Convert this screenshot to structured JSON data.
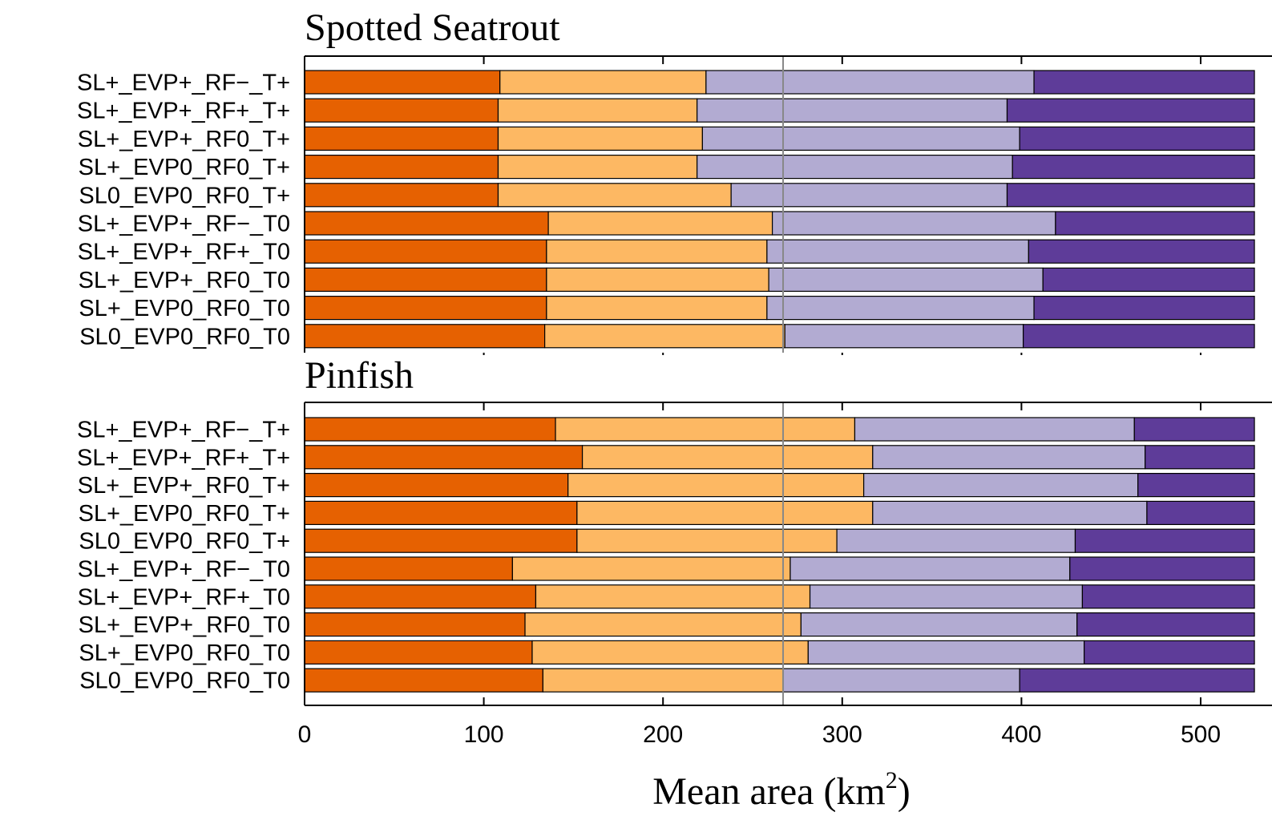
{
  "chart_data": {
    "type": "bar",
    "orientation": "horizontal",
    "stacked": true,
    "xlabel": "Mean area (km",
    "xlabel_superscript": "2",
    "xlabel_suffix": ")",
    "xlim": [
      0,
      530
    ],
    "xticks": [
      0,
      100,
      200,
      300,
      400,
      500
    ],
    "tick_labels": [
      "0",
      "100",
      "200",
      "300",
      "400",
      "500"
    ],
    "segment_colors": [
      "#e66101",
      "#fdb863",
      "#b2abd2",
      "#5e3c99"
    ],
    "reference_line": 267,
    "reference_line_color": "#888888",
    "categories": [
      "SL+_EVP+_RF−_T+",
      "SL+_EVP+_RF+_T+",
      "SL+_EVP+_RF0_T+",
      "SL+_EVP0_RF0_T+",
      "SL0_EVP0_RF0_T+",
      "SL+_EVP+_RF−_T0",
      "SL+_EVP+_RF+_T0",
      "SL+_EVP+_RF0_T0",
      "SL+_EVP0_RF0_T0",
      "SL0_EVP0_RF0_T0"
    ],
    "panels": [
      {
        "title": "Spotted Seatrout",
        "segments": [
          [
            109,
            224,
            407,
            530
          ],
          [
            108,
            219,
            392,
            530
          ],
          [
            108,
            222,
            399,
            530
          ],
          [
            108,
            219,
            395,
            530
          ],
          [
            108,
            238,
            392,
            530
          ],
          [
            136,
            261,
            419,
            530
          ],
          [
            135,
            258,
            404,
            530
          ],
          [
            135,
            259,
            412,
            530
          ],
          [
            135,
            258,
            407,
            530
          ],
          [
            134,
            268,
            401,
            530
          ]
        ]
      },
      {
        "title": "Pinfish",
        "segments": [
          [
            140,
            307,
            463,
            530
          ],
          [
            155,
            317,
            469,
            530
          ],
          [
            147,
            312,
            465,
            530
          ],
          [
            152,
            317,
            470,
            530
          ],
          [
            152,
            297,
            430,
            530
          ],
          [
            116,
            271,
            427,
            530
          ],
          [
            129,
            282,
            434,
            530
          ],
          [
            123,
            277,
            431,
            530
          ],
          [
            127,
            281,
            435,
            530
          ],
          [
            133,
            267,
            399,
            530
          ]
        ]
      }
    ]
  }
}
